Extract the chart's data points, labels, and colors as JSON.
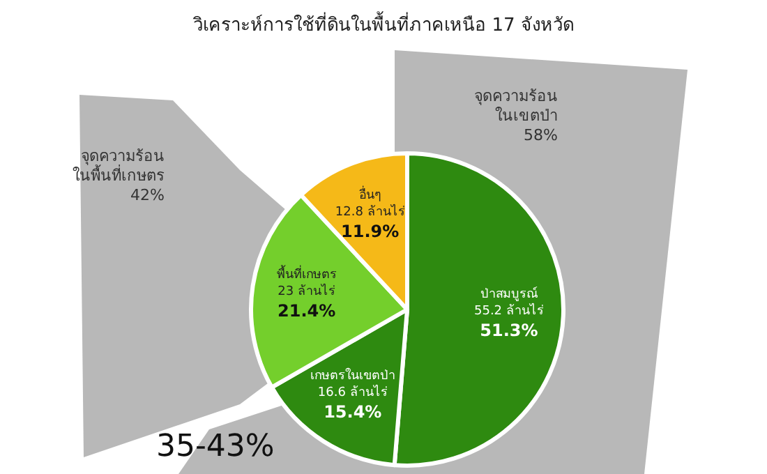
{
  "chart_data": {
    "type": "pie",
    "subtitle": "วิเคราะห์การใช้ที่ดินในพื้นที่ภาคเหนือ 17 จังหวัด",
    "categories": [
      "ป่าสมบูรณ์",
      "เกษตรในเขตป่า",
      "พื้นที่เกษตร",
      "อื่นๆ"
    ],
    "values": [
      51.3,
      15.4,
      21.4,
      11.9
    ],
    "value_labels": [
      "55.2 ล้านไร่\n51.3%",
      "16.6 ล้านไร่\n15.4%",
      "23 ล้านไร่\n21.4%",
      "12.8 ล้านไร่\n11.9%"
    ],
    "colors": [
      "#2e8a10",
      "#2e8a10",
      "#74cf2c",
      "#f5b918"
    ],
    "annotations": [
      "จุดความร้อน\nในเขตป่า\n58%",
      "จุดความร้อน\nในพื้นที่เกษตร\n42%",
      "35-43%"
    ]
  }
}
